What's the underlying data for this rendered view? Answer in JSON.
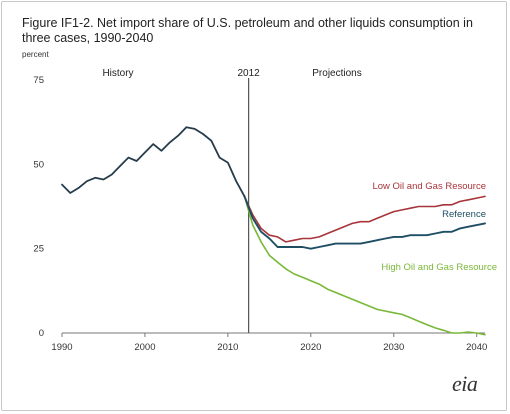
{
  "title": "Figure IF1-2. Net import share of U.S. petroleum and other liquids consumption in three cases, 1990-2040",
  "units": "percent",
  "period_labels": {
    "history": "History",
    "divider": "2012",
    "projections": "Projections"
  },
  "logo_text": "eia",
  "colors": {
    "history": "#263c4a",
    "low": "#a8343a",
    "reference": "#1e4e63",
    "high": "#7ab83a",
    "divider": "#555555"
  },
  "chart_data": {
    "type": "line",
    "title": "Figure IF1-2. Net import share of U.S. petroleum and other liquids consumption in three cases, 1990-2040",
    "ylabel": "percent",
    "xlim": [
      1990,
      2041
    ],
    "ylim": [
      0,
      75
    ],
    "x_ticks": [
      1990,
      2000,
      2010,
      2020,
      2030,
      2040
    ],
    "y_ticks": [
      0,
      25,
      50,
      75
    ],
    "grid": false,
    "divider_year": 2012.5,
    "series": [
      {
        "key": "history",
        "name": "",
        "label_text": "",
        "x": [
          1990,
          1991,
          1992,
          1993,
          1994,
          1995,
          1996,
          1997,
          1998,
          1999,
          2000,
          2001,
          2002,
          2003,
          2004,
          2005,
          2006,
          2007,
          2008,
          2009,
          2010,
          2011,
          2012
        ],
        "y": [
          44,
          41.5,
          43,
          45,
          46,
          45.5,
          47,
          49.5,
          52,
          51,
          53.5,
          56,
          54,
          56.5,
          58.5,
          61,
          60.5,
          59,
          57,
          52,
          50.5,
          45,
          40.5
        ]
      },
      {
        "key": "low",
        "name": "Low Oil and Gas Resource",
        "label_text": "Low Oil and Gas Resource",
        "x": [
          2012,
          2013,
          2014,
          2015,
          2016,
          2017,
          2018,
          2019,
          2020,
          2021,
          2022,
          2023,
          2024,
          2025,
          2026,
          2027,
          2028,
          2029,
          2030,
          2031,
          2032,
          2033,
          2034,
          2035,
          2036,
          2037,
          2038,
          2039,
          2040,
          2041
        ],
        "y": [
          40.5,
          35,
          31,
          29,
          28.5,
          27,
          27.5,
          28,
          28,
          28.5,
          29.5,
          30.5,
          31.5,
          32.5,
          33,
          33,
          34,
          35,
          36,
          36.5,
          37,
          37.5,
          37.5,
          37.5,
          38,
          38,
          39,
          39.5,
          40,
          40.5
        ]
      },
      {
        "key": "reference",
        "name": "Reference",
        "label_text": "Reference",
        "x": [
          2012,
          2013,
          2014,
          2015,
          2016,
          2017,
          2018,
          2019,
          2020,
          2021,
          2022,
          2023,
          2024,
          2025,
          2026,
          2027,
          2028,
          2029,
          2030,
          2031,
          2032,
          2033,
          2034,
          2035,
          2036,
          2037,
          2038,
          2039,
          2040,
          2041
        ],
        "y": [
          40.5,
          34,
          30,
          28,
          25.5,
          25.5,
          25.5,
          25.5,
          25,
          25.5,
          26,
          26.5,
          26.5,
          26.5,
          26.5,
          27,
          27.5,
          28,
          28.5,
          28.5,
          29,
          29,
          29,
          29.5,
          30,
          30,
          31,
          31.5,
          32,
          32.5
        ]
      },
      {
        "key": "high",
        "name": "High Oil and Gas Resource",
        "label_text": "High Oil and Gas Resource",
        "x": [
          2012,
          2013,
          2014,
          2015,
          2016,
          2017,
          2018,
          2019,
          2020,
          2021,
          2022,
          2023,
          2024,
          2025,
          2026,
          2027,
          2028,
          2029,
          2030,
          2031,
          2032,
          2033,
          2034,
          2035,
          2036,
          2037,
          2038,
          2039,
          2040,
          2041
        ],
        "y": [
          40.5,
          32,
          27,
          23,
          21,
          19,
          17.5,
          16.5,
          15.5,
          14.5,
          13,
          12,
          11,
          10,
          9,
          8,
          7,
          6.5,
          6,
          5.5,
          4.5,
          3.5,
          2.5,
          1.5,
          0.8,
          0,
          0,
          0.3,
          0,
          -0.5
        ]
      }
    ]
  }
}
